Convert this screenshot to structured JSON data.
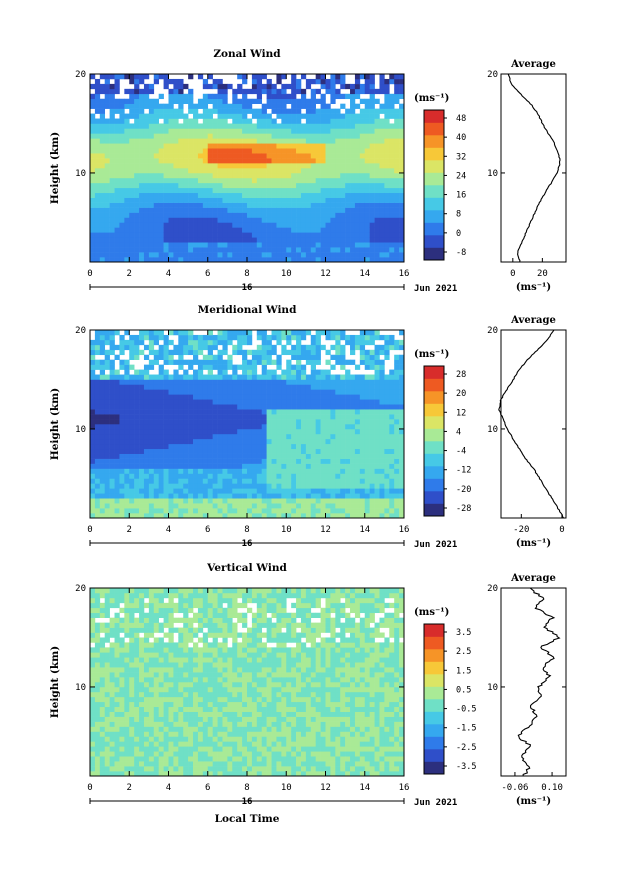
{
  "figure": {
    "date_label": "Jun 2021",
    "day_label": "16",
    "xlabel": "Local Time",
    "ylabel": "Height (km)",
    "unit": "(ms⁻¹)",
    "avg_title": "Average",
    "x_ticks": [
      "0",
      "2",
      "4",
      "6",
      "8",
      "10",
      "12",
      "14",
      "16"
    ],
    "y_ticks": [
      "10",
      "20"
    ],
    "colors": [
      "#2c2f7e",
      "#2f4fc9",
      "#2f7bea",
      "#35a8ef",
      "#46c9e6",
      "#6fe0c6",
      "#a9ea96",
      "#dbe565",
      "#f7c838",
      "#f69427",
      "#ee5a22",
      "#d82c2b"
    ]
  },
  "chart_data": [
    {
      "type": "heatmap",
      "title": "Zonal Wind",
      "xlabel": "Local Time",
      "ylabel": "Height (km)",
      "xlim": [
        0,
        16
      ],
      "ylim": [
        1,
        20
      ],
      "colorbar_ticks": [
        "48",
        "40",
        "32",
        "24",
        "16",
        "8",
        "0",
        "-8"
      ],
      "colorbar_range": [
        -8,
        52
      ],
      "avg_xticks": [
        "0",
        "20"
      ],
      "avg_xlim": [
        -8,
        36
      ],
      "profile": {
        "z": [
          1,
          2,
          3,
          4,
          5,
          6,
          7,
          8,
          9,
          10,
          11,
          12,
          13,
          14,
          15,
          16,
          17,
          18,
          19,
          20
        ],
        "value": [
          5,
          3,
          6,
          9,
          12,
          15,
          18,
          22,
          26,
          30,
          32,
          31,
          28,
          24,
          20,
          17,
          12,
          5,
          -1,
          -3
        ]
      }
    },
    {
      "type": "heatmap",
      "title": "Meridional Wind",
      "xlabel": "Local Time",
      "ylabel": "Height (km)",
      "xlim": [
        0,
        16
      ],
      "ylim": [
        1,
        20
      ],
      "colorbar_ticks": [
        "28",
        "20",
        "12",
        "4",
        "-4",
        "-12",
        "-20",
        "-28"
      ],
      "colorbar_range": [
        -32,
        32
      ],
      "avg_xticks": [
        "-20",
        "0"
      ],
      "avg_xlim": [
        -30,
        2
      ],
      "profile": {
        "z": [
          1,
          2,
          3,
          4,
          5,
          6,
          7,
          8,
          9,
          10,
          11,
          12,
          13,
          14,
          15,
          16,
          17,
          18,
          19,
          20
        ],
        "value": [
          1,
          -2,
          -5,
          -8,
          -11,
          -14,
          -18,
          -21,
          -24,
          -27,
          -29,
          -31,
          -30,
          -27,
          -24,
          -21,
          -17,
          -12,
          -7,
          -4
        ]
      }
    },
    {
      "type": "heatmap",
      "title": "Vertical Wind",
      "xlabel": "Local Time",
      "ylabel": "Height (km)",
      "xlim": [
        0,
        16
      ],
      "ylim": [
        1,
        20
      ],
      "colorbar_ticks": [
        "3.5",
        "2.5",
        "1.5",
        "0.5",
        "-0.5",
        "-1.5",
        "-2.5",
        "-3.5"
      ],
      "colorbar_range": [
        -4,
        4
      ],
      "avg_xticks": [
        "-0.06",
        "0.10"
      ],
      "avg_xlim": [
        -0.12,
        0.16
      ],
      "profile": {
        "z": [
          1,
          2,
          3,
          4,
          5,
          6,
          7,
          8,
          9,
          10,
          11,
          12,
          13,
          14,
          15,
          16,
          17,
          18,
          19,
          20
        ],
        "value": [
          -0.02,
          0.0,
          -0.04,
          0.01,
          -0.05,
          0.0,
          0.03,
          0.01,
          0.05,
          0.04,
          0.09,
          0.06,
          0.11,
          0.05,
          0.13,
          0.07,
          0.1,
          0.03,
          0.06,
          0.0
        ]
      }
    }
  ]
}
